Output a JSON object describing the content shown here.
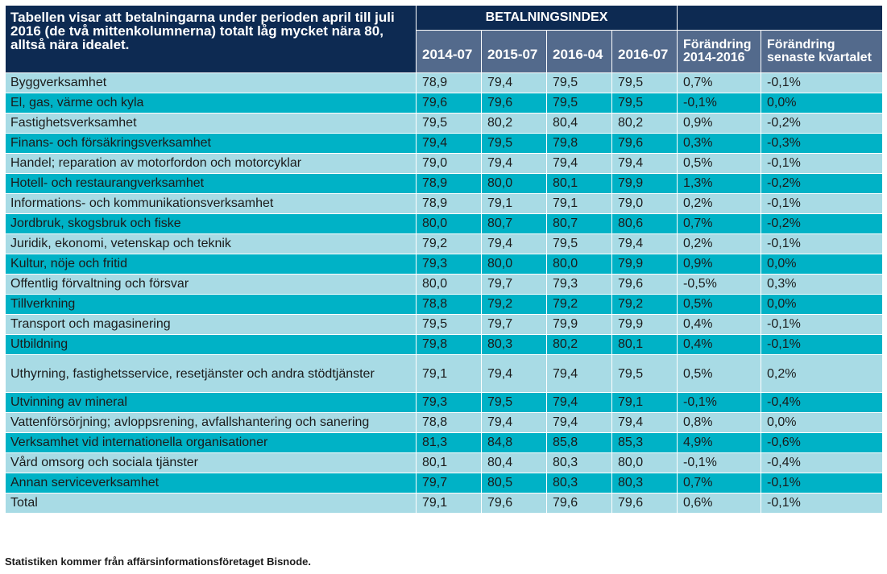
{
  "header": {
    "description": "Tabellen visar att betalningarna under perioden april till juli 2016 (de två mittenkolumnerna) totalt låg mycket nära 80, alltså nära idealet.",
    "group_label": "BETALNINGSINDEX",
    "columns": [
      "2014-07",
      "2015-07",
      "2016-04",
      "2016-07",
      "Förändring 2014-2016",
      "Förändring senaste kvartalet"
    ]
  },
  "rows": [
    {
      "label": "Byggverksamhet",
      "values": [
        "78,9",
        "79,4",
        "79,5",
        "79,5",
        "0,7%",
        "-0,1%"
      ]
    },
    {
      "label": "El, gas, värme och kyla",
      "values": [
        "79,6",
        "79,6",
        "79,5",
        "79,5",
        "-0,1%",
        "0,0%"
      ]
    },
    {
      "label": "Fastighetsverksamhet",
      "values": [
        "79,5",
        "80,2",
        "80,4",
        "80,2",
        "0,9%",
        "-0,2%"
      ]
    },
    {
      "label": "Finans- och försäkringsverksamhet",
      "values": [
        "79,4",
        "79,5",
        "79,8",
        "79,6",
        "0,3%",
        "-0,3%"
      ]
    },
    {
      "label": "Handel; reparation av motorfordon och motorcyklar",
      "values": [
        "79,0",
        "79,4",
        "79,4",
        "79,4",
        "0,5%",
        "-0,1%"
      ]
    },
    {
      "label": "Hotell- och restaurangverksamhet",
      "values": [
        "78,9",
        "80,0",
        "80,1",
        "79,9",
        "1,3%",
        "-0,2%"
      ]
    },
    {
      "label": "Informations- och kommunikationsverksamhet",
      "values": [
        "78,9",
        "79,1",
        "79,1",
        "79,0",
        "0,2%",
        "-0,1%"
      ]
    },
    {
      "label": "Jordbruk, skogsbruk och fiske",
      "values": [
        "80,0",
        "80,7",
        "80,7",
        "80,6",
        "0,7%",
        "-0,2%"
      ]
    },
    {
      "label": "Juridik, ekonomi, vetenskap och teknik",
      "values": [
        "79,2",
        "79,4",
        "79,5",
        "79,4",
        "0,2%",
        "-0,1%"
      ]
    },
    {
      "label": "Kultur, nöje och fritid",
      "values": [
        "79,3",
        "80,0",
        "80,0",
        "79,9",
        "0,9%",
        "0,0%"
      ]
    },
    {
      "label": "Offentlig förvaltning och försvar",
      "values": [
        "80,0",
        "79,7",
        "79,3",
        "79,6",
        "-0,5%",
        "0,3%"
      ]
    },
    {
      "label": "Tillverkning",
      "values": [
        "78,8",
        "79,2",
        "79,2",
        "79,2",
        "0,5%",
        "0,0%"
      ]
    },
    {
      "label": "Transport och magasinering",
      "values": [
        "79,5",
        "79,7",
        "79,9",
        "79,9",
        "0,4%",
        "-0,1%"
      ]
    },
    {
      "label": "Utbildning",
      "values": [
        "79,8",
        "80,3",
        "80,2",
        "80,1",
        "0,4%",
        "-0,1%"
      ]
    },
    {
      "label": "Uthyrning, fastighetsservice, resetjänster och andra stödtjänster",
      "values": [
        "79,1",
        "79,4",
        "79,4",
        "79,5",
        "0,5%",
        "0,2%"
      ],
      "tall": true
    },
    {
      "label": "Utvinning av mineral",
      "values": [
        "79,3",
        "79,5",
        "79,4",
        "79,1",
        "-0,1%",
        "-0,4%"
      ]
    },
    {
      "label": "Vattenförsörjning; avloppsrening, avfallshantering och sanering",
      "values": [
        "78,8",
        "79,4",
        "79,4",
        "79,4",
        "0,8%",
        "0,0%"
      ]
    },
    {
      "label": "Verksamhet vid internationella organisationer",
      "values": [
        "81,3",
        "84,8",
        "85,8",
        "85,3",
        "4,9%",
        "-0,6%"
      ]
    },
    {
      "label": "Vård omsorg och sociala tjänster",
      "values": [
        "80,1",
        "80,4",
        "80,3",
        "80,0",
        "-0,1%",
        "-0,4%"
      ]
    },
    {
      "label": "Annan serviceverksamhet",
      "values": [
        "79,7",
        "80,5",
        "80,3",
        "80,3",
        "0,7%",
        "-0,1%"
      ]
    },
    {
      "label": "Total",
      "values": [
        "79,1",
        "79,6",
        "79,6",
        "79,6",
        "0,6%",
        "-0,1%"
      ]
    }
  ],
  "footer": "Statistiken kommer från affärsinformationsföretaget Bisnode.",
  "colors": {
    "header_dark": "#0d2a52",
    "header_mid": "#536a8c",
    "row_light": "#a8dbe5",
    "row_dark": "#00b2c6"
  }
}
